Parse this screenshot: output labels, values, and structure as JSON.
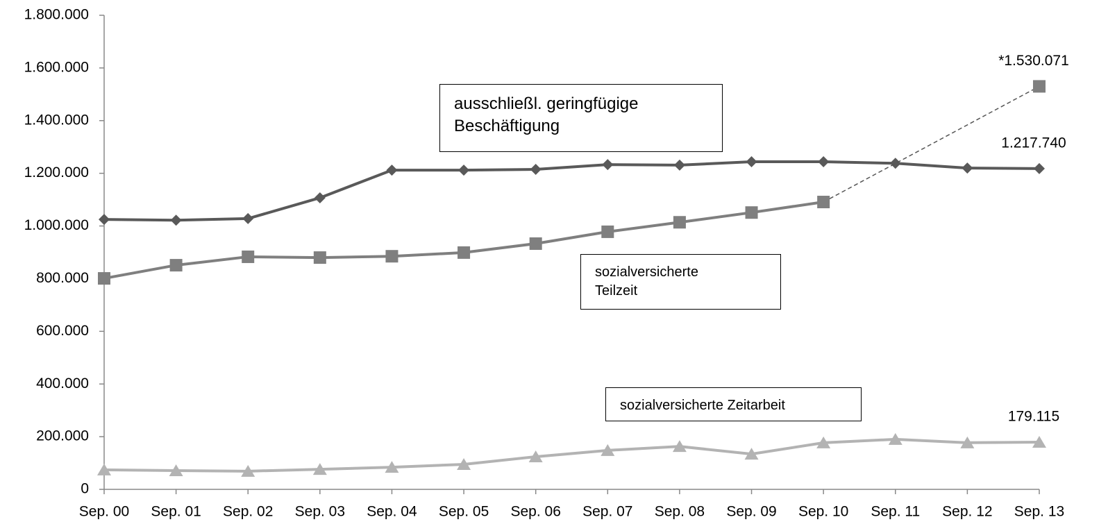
{
  "chart_data": {
    "type": "line",
    "categories": [
      "Sep. 00",
      "Sep. 01",
      "Sep. 02",
      "Sep. 03",
      "Sep. 04",
      "Sep. 05",
      "Sep. 06",
      "Sep. 07",
      "Sep. 08",
      "Sep. 09",
      "Sep. 10",
      "Sep. 11",
      "Sep. 12",
      "Sep. 13"
    ],
    "series": [
      {
        "name": "ausschließl. geringfügige Beschäftigung",
        "color": "#595959",
        "marker": "diamond",
        "values": [
          1025000,
          1022000,
          1028000,
          1107000,
          1212000,
          1212000,
          1215000,
          1233000,
          1231000,
          1244000,
          1244000,
          1238000,
          1220000,
          1217740
        ],
        "value_labels": [
          null,
          null,
          null,
          null,
          null,
          null,
          null,
          null,
          null,
          null,
          null,
          null,
          null,
          "1.217.740"
        ]
      },
      {
        "name": "sozialversicherte Teilzeit",
        "color": "#7f7f7f",
        "marker": "square",
        "values": [
          801000,
          851000,
          883000,
          880000,
          885000,
          899000,
          933000,
          978000,
          1014000,
          1051000,
          1091000,
          null,
          null,
          1530071
        ],
        "value_labels": [
          null,
          null,
          null,
          null,
          null,
          null,
          null,
          null,
          null,
          null,
          null,
          null,
          null,
          "*1.530.071"
        ]
      },
      {
        "name": "sozialversicherte Zeitarbeit",
        "color": "#b3b3b3",
        "marker": "triangle",
        "values": [
          74000,
          71000,
          69000,
          76000,
          84000,
          95000,
          124000,
          148000,
          163000,
          134000,
          177000,
          190000,
          177000,
          179115
        ],
        "value_labels": [
          null,
          null,
          null,
          null,
          null,
          null,
          null,
          null,
          null,
          null,
          null,
          null,
          null,
          "179.115"
        ]
      }
    ],
    "ylim": [
      0,
      1800000
    ],
    "yticks": [
      0,
      {
        "value": 200000,
        "label": "200.000"
      },
      {
        "value": 400000,
        "label": "400.000"
      },
      {
        "value": 600000,
        "label": "600.000"
      },
      {
        "value": 800000,
        "label": "800.000"
      },
      {
        "value": 1000000,
        "label": "1.000.000"
      },
      {
        "value": 1200000,
        "label": "1.200.000"
      },
      {
        "value": 1400000,
        "label": "1.400.000"
      },
      {
        "value": 1600000,
        "label": "1.600.000"
      },
      {
        "value": 1800000,
        "label": "1.800.000"
      }
    ],
    "grid": false
  }
}
